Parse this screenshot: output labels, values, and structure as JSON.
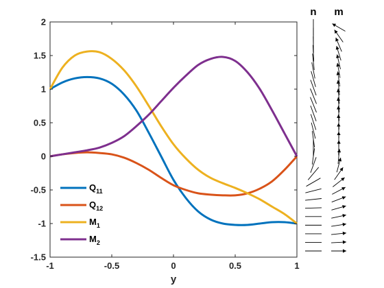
{
  "chart_data": {
    "type": "line",
    "xlabel": "y",
    "ylabel": "",
    "xlim": [
      -1,
      1
    ],
    "ylim": [
      -1.5,
      2
    ],
    "xticks": [
      -1,
      -0.5,
      0,
      0.5,
      1
    ],
    "xtick_labels": [
      "-1",
      "-0.5",
      "0",
      "0.5",
      "1"
    ],
    "yticks": [
      -1.5,
      -1,
      -0.5,
      0,
      0.5,
      1,
      1.5,
      2
    ],
    "ytick_labels": [
      "-1.5",
      "-1",
      "-0.5",
      "0",
      "0.5",
      "1",
      "1.5",
      "2"
    ],
    "grid": false,
    "legend_position": "bottom-left",
    "series": [
      {
        "name": "Q11",
        "label_main": "Q",
        "label_sub": "11",
        "color": "#0072BD",
        "x": [
          -1,
          -0.9,
          -0.8,
          -0.7,
          -0.6,
          -0.5,
          -0.4,
          -0.3,
          -0.2,
          -0.1,
          0,
          0.1,
          0.2,
          0.3,
          0.4,
          0.5,
          0.6,
          0.7,
          0.8,
          0.9,
          1
        ],
        "y": [
          1.0,
          1.1,
          1.16,
          1.18,
          1.16,
          1.08,
          0.92,
          0.68,
          0.35,
          0.0,
          -0.35,
          -0.62,
          -0.82,
          -0.94,
          -1.0,
          -1.02,
          -1.02,
          -1.0,
          -0.98,
          -0.98,
          -1.0
        ]
      },
      {
        "name": "Q12",
        "label_main": "Q",
        "label_sub": "12",
        "color": "#D95319",
        "x": [
          -1,
          -0.9,
          -0.8,
          -0.7,
          -0.6,
          -0.5,
          -0.4,
          -0.3,
          -0.2,
          -0.1,
          0,
          0.1,
          0.2,
          0.3,
          0.4,
          0.5,
          0.6,
          0.7,
          0.8,
          0.9,
          1
        ],
        "y": [
          0.0,
          0.03,
          0.05,
          0.06,
          0.05,
          0.03,
          -0.02,
          -0.1,
          -0.2,
          -0.32,
          -0.43,
          -0.5,
          -0.55,
          -0.57,
          -0.58,
          -0.58,
          -0.55,
          -0.48,
          -0.37,
          -0.2,
          0.0
        ]
      },
      {
        "name": "M1",
        "label_main": "M",
        "label_sub": "1",
        "color": "#EDB120",
        "x": [
          -1,
          -0.9,
          -0.8,
          -0.7,
          -0.6,
          -0.5,
          -0.4,
          -0.3,
          -0.2,
          -0.1,
          0,
          0.1,
          0.2,
          0.3,
          0.4,
          0.5,
          0.6,
          0.7,
          0.8,
          0.9,
          1
        ],
        "y": [
          1.0,
          1.32,
          1.5,
          1.56,
          1.55,
          1.45,
          1.28,
          1.04,
          0.75,
          0.45,
          0.18,
          -0.03,
          -0.2,
          -0.32,
          -0.4,
          -0.47,
          -0.55,
          -0.64,
          -0.75,
          -0.86,
          -1.0
        ]
      },
      {
        "name": "M2",
        "label_main": "M",
        "label_sub": "2",
        "color": "#7E2F8E",
        "x": [
          -1,
          -0.9,
          -0.8,
          -0.7,
          -0.6,
          -0.5,
          -0.4,
          -0.3,
          -0.2,
          -0.1,
          0,
          0.1,
          0.2,
          0.3,
          0.4,
          0.5,
          0.6,
          0.7,
          0.8,
          0.9,
          1
        ],
        "y": [
          0.0,
          0.03,
          0.06,
          0.09,
          0.13,
          0.2,
          0.3,
          0.45,
          0.62,
          0.82,
          1.02,
          1.2,
          1.36,
          1.45,
          1.48,
          1.42,
          1.25,
          1.0,
          0.68,
          0.34,
          0.0
        ]
      }
    ],
    "vector_fields": {
      "title_n": "n",
      "title_m": "m",
      "color": "#000000",
      "n_angles_deg": [
        90,
        90,
        91,
        93,
        96,
        101,
        106,
        110,
        112,
        112,
        110,
        108,
        104,
        98,
        90,
        82,
        70,
        50,
        30,
        14,
        6,
        2,
        0,
        0,
        0,
        0,
        0
      ],
      "m_angles_deg": [
        150,
        125,
        113,
        107,
        103,
        100,
        98,
        96,
        95,
        94,
        93,
        92,
        91,
        90,
        89,
        85,
        75,
        55,
        38,
        28,
        21,
        16,
        12,
        9,
        6,
        3,
        0
      ]
    }
  }
}
